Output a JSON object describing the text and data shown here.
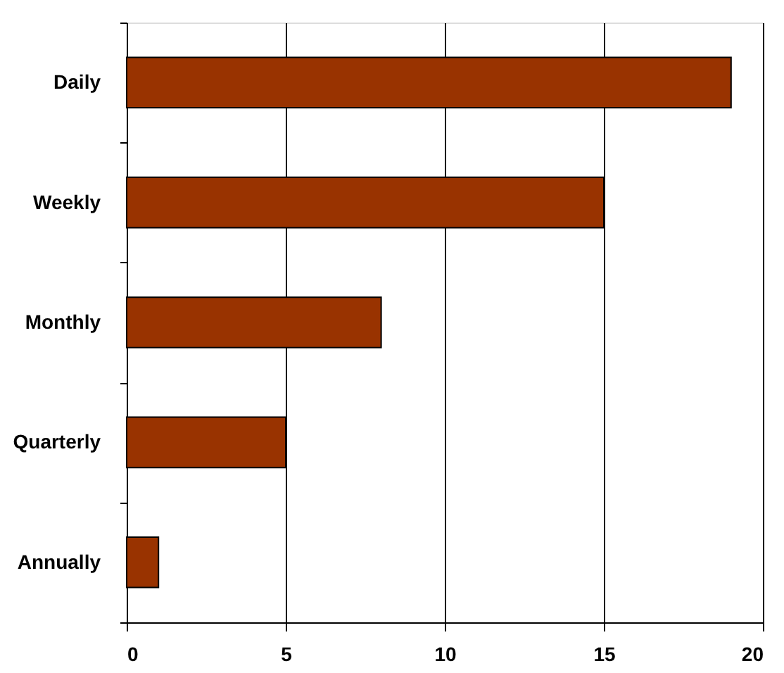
{
  "chart_data": {
    "type": "bar",
    "orientation": "horizontal",
    "categories": [
      "Daily",
      "Weekly",
      "Monthly",
      "Quarterly",
      "Annually"
    ],
    "values": [
      19,
      15,
      8,
      5,
      1
    ],
    "color": "#993300",
    "xlim": [
      0,
      20
    ],
    "xticks": [
      0,
      5,
      10,
      15,
      20
    ],
    "grid": "x"
  }
}
